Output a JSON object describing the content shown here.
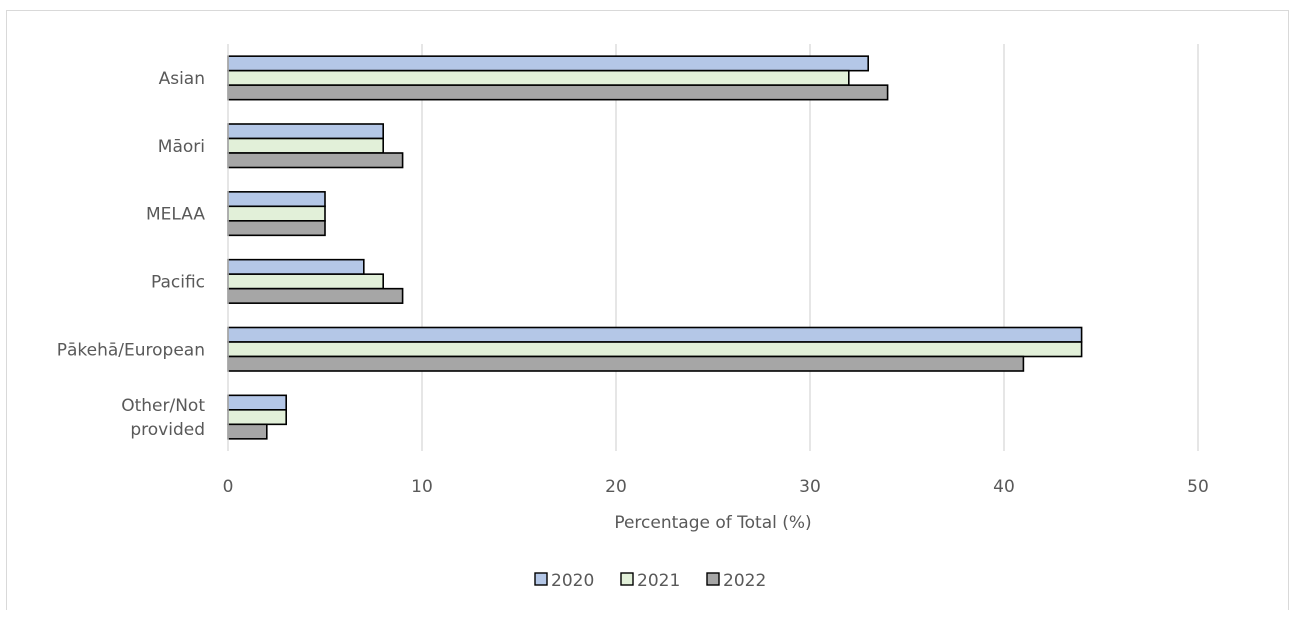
{
  "chart_data": {
    "type": "bar",
    "orientation": "horizontal",
    "title": "",
    "xlabel": "Percentage of Total (%)",
    "ylabel": "",
    "xlim": [
      0,
      50
    ],
    "xticks": [
      0,
      10,
      20,
      30,
      40,
      50
    ],
    "grid": true,
    "legend_position": "bottom",
    "categories": [
      "Asian",
      "Māori",
      "MELAA",
      "Pacific",
      "Pākehā/European",
      "Other/Not provided"
    ],
    "category_label_lines": [
      [
        "Asian"
      ],
      [
        "Māori"
      ],
      [
        "MELAA"
      ],
      [
        "Pacific"
      ],
      [
        "Pākehā/European"
      ],
      [
        "Other/Not",
        "provided"
      ]
    ],
    "series": [
      {
        "name": "2020",
        "color": "#b4c7e7",
        "values": [
          33,
          8,
          5,
          7,
          44,
          3
        ]
      },
      {
        "name": "2021",
        "color": "#e2f0d9",
        "values": [
          32,
          8,
          5,
          8,
          44,
          3
        ]
      },
      {
        "name": "2022",
        "color": "#a6a6a6",
        "values": [
          34,
          9,
          5,
          9,
          41,
          2
        ]
      }
    ]
  }
}
